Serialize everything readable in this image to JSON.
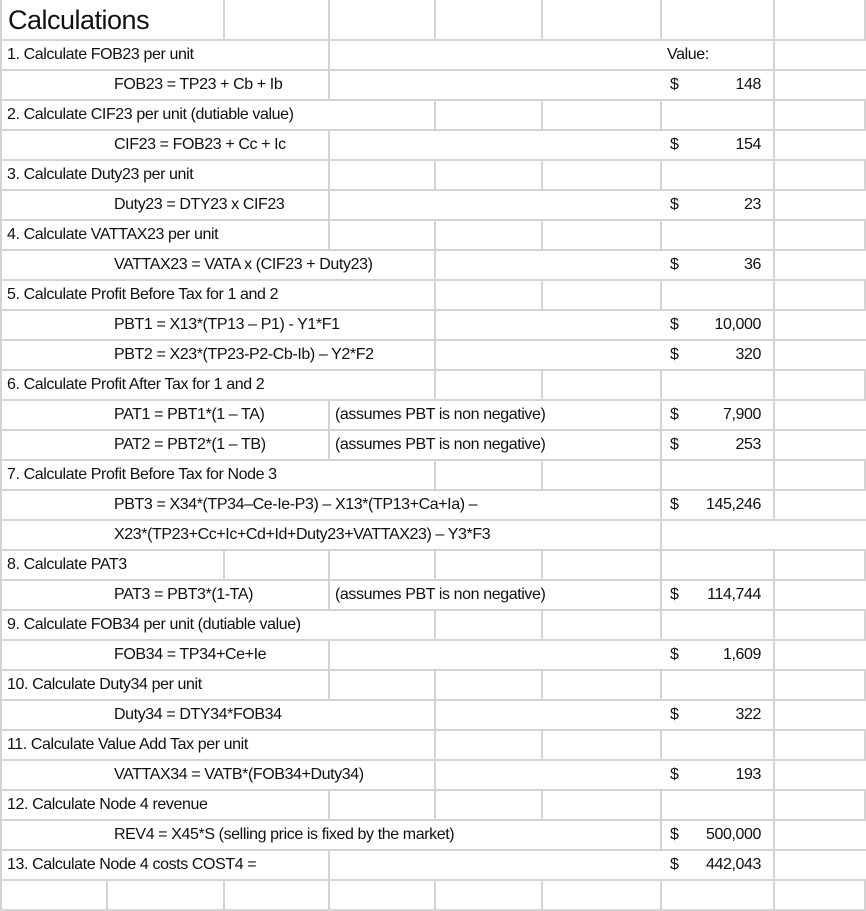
{
  "title": "Calculations",
  "value_header": "Value:",
  "colors": {
    "gridline": "#d4d4d4",
    "text": "#111111"
  },
  "rows": [
    {
      "step": "1.  Calculate FOB23 per unit"
    },
    {
      "formula": "FOB23 = TP23 + Cb + Ib",
      "currency": "$",
      "amount": "148"
    },
    {
      "step": "2.  Calculate CIF23 per unit    (dutiable value)"
    },
    {
      "formula": "CIF23 = FOB23 + Cc + Ic",
      "currency": "$",
      "amount": "154"
    },
    {
      "step": "3.  Calculate Duty23 per unit"
    },
    {
      "formula": "Duty23 = DTY23 x CIF23",
      "currency": "$",
      "amount": "23"
    },
    {
      "step": "4.  Calculate VATTAX23 per unit"
    },
    {
      "formula": "VATTAX23 = VATA x (CIF23 + Duty23)",
      "currency": "$",
      "amount": "36"
    },
    {
      "step": "5.  Calculate Profit Before Tax for 1 and 2"
    },
    {
      "formula": "PBT1 = X13*(TP13 – P1) - Y1*F1",
      "currency": "$",
      "amount": "10,000"
    },
    {
      "formula": "PBT2 = X23*(TP23-P2-Cb-Ib) – Y2*F2",
      "currency": "$",
      "amount": "320"
    },
    {
      "step": "6.  Calculate Profit After Tax for 1 and 2"
    },
    {
      "formula": "PAT1 = PBT1*(1 – TA)",
      "note": "(assumes PBT is non negative)",
      "currency": "$",
      "amount": "7,900"
    },
    {
      "formula": "PAT2 = PBT2*(1 – TB)",
      "note": "(assumes PBT is non negative)",
      "currency": "$",
      "amount": "253"
    },
    {
      "step": "7.  Calculate Profit Before Tax for Node 3"
    },
    {
      "formula": "PBT3 = X34*(TP34–Ce-Ie-P3) – X13*(TP13+Ca+Ia) –",
      "currency": "$",
      "amount": "145,246"
    },
    {
      "formula": " X23*(TP23+Cc+Ic+Cd+Id+Duty23+VATTAX23) – Y3*F3"
    },
    {
      "step": "8.  Calculate PAT3"
    },
    {
      "formula": "PAT3 = PBT3*(1-TA)",
      "note": "(assumes PBT is non negative)",
      "currency": "$",
      "amount": "114,744"
    },
    {
      "step": "9.  Calculate FOB34 per unit  (dutiable value)"
    },
    {
      "formula": " FOB34 = TP34+Ce+Ie",
      "currency": "$",
      "amount": "1,609"
    },
    {
      "step": "10.  Calculate Duty34 per unit"
    },
    {
      "formula": " Duty34 = DTY34*FOB34",
      "currency": "$",
      "amount": "322"
    },
    {
      "step": "11.  Calculate Value Add Tax per unit"
    },
    {
      "formula": "  VATTAX34 = VATB*(FOB34+Duty34)",
      "currency": "$",
      "amount": "193"
    },
    {
      "step": "12.  Calculate Node 4 revenue"
    },
    {
      "formula": "REV4 = X45*S (selling price is fixed by the market)",
      "currency": "$",
      "amount": "500,000"
    },
    {
      "step": "13.  Calculate Node 4 costs   COST4 =",
      "currency": "$",
      "amount": "442,043"
    }
  ]
}
